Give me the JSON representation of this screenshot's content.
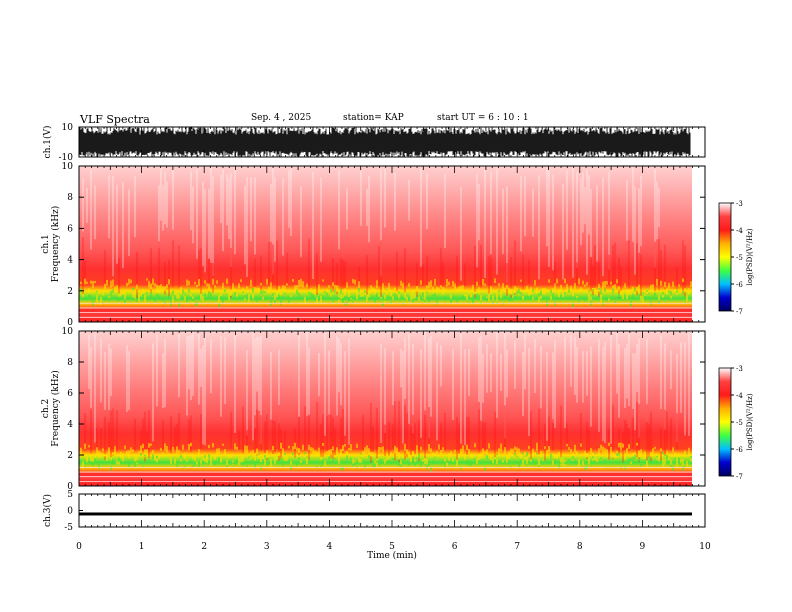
{
  "header": {
    "title": "VLF Spectra",
    "date": "Sep. 4 , 2025",
    "station": "station= KAP",
    "start": "start UT = 6 : 10 : 1"
  },
  "colors": {
    "spectrogram": [
      "#ffffff",
      "#ff4040",
      "#ff1a1a",
      "#ffb000",
      "#ffff00",
      "#40ff40",
      "#00c0ff",
      "#0000d0",
      "#000060"
    ],
    "trace": "#000000"
  },
  "chart_data": [
    {
      "type": "line",
      "panel": "ch1-waveform",
      "ylabel": "ch.1(V)",
      "ylim": [
        -10,
        10
      ],
      "yticks": [
        "10",
        "-10"
      ],
      "xlim": [
        0,
        10
      ],
      "note": "dense broadband waveform, saturating near the axis limits"
    },
    {
      "type": "heatmap",
      "panel": "ch1-spectrogram",
      "ylabel_top": "ch.1",
      "ylabel": "Frequency (kHz)",
      "ylim": [
        0,
        10
      ],
      "yticks": [
        "0",
        "2",
        "4",
        "6",
        "8",
        "10"
      ],
      "xlim": [
        0,
        10
      ],
      "colorbar": {
        "label": "log(PSD)(V²/Hz)",
        "range": [
          -7,
          -3
        ],
        "ticks": [
          "-3",
          "-4",
          "-5",
          "-6",
          "-7"
        ]
      }
    },
    {
      "type": "heatmap",
      "panel": "ch2-spectrogram",
      "ylabel_top": "ch.2",
      "ylabel": "Frequency (kHz)",
      "ylim": [
        0,
        10
      ],
      "yticks": [
        "0",
        "2",
        "4",
        "6",
        "8",
        "10"
      ],
      "xlim": [
        0,
        10
      ],
      "colorbar": {
        "label": "log(PSD)(V²/Hz)",
        "range": [
          -7,
          -3
        ],
        "ticks": [
          "-3",
          "-4",
          "-5",
          "-6",
          "-7"
        ]
      }
    },
    {
      "type": "line",
      "panel": "ch3-waveform",
      "ylabel": "ch.3(V)",
      "ylim": [
        -5,
        5
      ],
      "yticks": [
        "5",
        "0",
        "-5"
      ],
      "xlim": [
        0,
        10
      ],
      "note": "nearly constant trace around -1 V"
    }
  ],
  "xaxis": {
    "label": "Time (min)",
    "ticks": [
      "0",
      "1",
      "2",
      "3",
      "4",
      "5",
      "6",
      "7",
      "8",
      "9",
      "10"
    ]
  }
}
